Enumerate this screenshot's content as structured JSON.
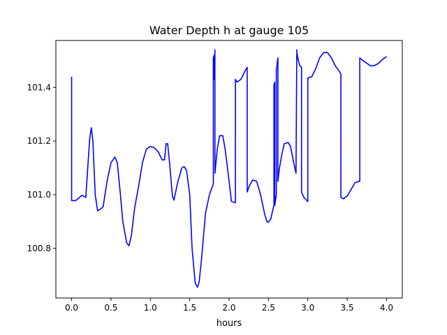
{
  "chart_data": {
    "type": "line",
    "title": "Water Depth h at gauge 105",
    "xlabel": "hours",
    "ylabel": "",
    "xlim": [
      -0.2,
      4.2
    ],
    "ylim": [
      100.615,
      101.575
    ],
    "xticks": [
      0.0,
      0.5,
      1.0,
      1.5,
      2.0,
      2.5,
      3.0,
      3.5,
      4.0
    ],
    "xtick_labels": [
      "0.0",
      "0.5",
      "1.0",
      "1.5",
      "2.0",
      "2.5",
      "3.0",
      "3.5",
      "4.0"
    ],
    "yticks": [
      100.8,
      101.0,
      101.2,
      101.4
    ],
    "ytick_labels": [
      "100.8",
      "101.0",
      "101.2",
      "101.4"
    ],
    "grid": false,
    "line_color": "#0000ff",
    "series": [
      {
        "x": [
          0.0,
          0.0,
          0.05,
          0.1,
          0.13,
          0.18,
          0.2,
          0.23,
          0.25,
          0.27,
          0.3,
          0.33,
          0.36,
          0.4,
          0.45,
          0.5,
          0.55,
          0.58,
          0.62,
          0.65,
          0.7,
          0.73,
          0.76,
          0.8,
          0.85,
          0.9,
          0.95,
          1.0,
          1.05,
          1.1,
          1.15,
          1.18,
          1.2,
          1.22,
          1.25,
          1.28,
          1.3,
          1.35,
          1.4,
          1.43,
          1.46,
          1.5,
          1.53,
          1.57,
          1.6,
          1.62,
          1.65,
          1.7,
          1.75,
          1.8,
          1.8,
          1.81,
          1.81,
          1.82,
          1.82,
          1.85,
          1.88,
          1.92,
          1.95,
          2.0,
          2.03,
          2.08,
          2.08,
          2.1,
          2.15,
          2.2,
          2.23,
          2.23,
          2.26,
          2.3,
          2.35,
          2.4,
          2.45,
          2.48,
          2.5,
          2.53,
          2.56,
          2.57,
          2.57,
          2.58,
          2.58,
          2.6,
          2.6,
          2.61,
          2.61,
          2.62,
          2.62,
          2.64,
          2.67,
          2.7,
          2.75,
          2.78,
          2.82,
          2.85,
          2.86,
          2.86,
          2.88,
          2.9,
          2.92,
          2.92,
          2.95,
          3.0,
          3.0,
          3.05,
          3.1,
          3.15,
          3.2,
          3.25,
          3.3,
          3.35,
          3.4,
          3.42,
          3.42,
          3.45,
          3.5,
          3.55,
          3.6,
          3.65,
          3.66,
          3.66,
          3.7,
          3.75,
          3.8,
          3.85,
          3.9,
          3.95,
          4.0
        ],
        "y": [
          101.44,
          100.978,
          100.978,
          100.99,
          100.998,
          100.99,
          101.08,
          101.21,
          101.25,
          101.2,
          101.0,
          100.94,
          100.945,
          100.955,
          101.05,
          101.12,
          101.14,
          101.12,
          101.0,
          100.9,
          100.82,
          100.81,
          100.85,
          100.95,
          101.03,
          101.12,
          101.17,
          101.18,
          101.175,
          101.16,
          101.13,
          101.13,
          101.19,
          101.19,
          101.1,
          100.995,
          100.98,
          101.05,
          101.1,
          101.105,
          101.09,
          101.0,
          100.8,
          100.67,
          100.655,
          100.675,
          100.76,
          100.93,
          101.0,
          101.04,
          101.51,
          101.52,
          101.43,
          101.54,
          101.08,
          101.17,
          101.22,
          101.22,
          101.17,
          101.05,
          100.975,
          100.97,
          101.43,
          101.42,
          101.43,
          101.46,
          101.475,
          101.01,
          101.035,
          101.055,
          101.05,
          101.0,
          100.93,
          100.9,
          100.898,
          100.91,
          100.95,
          100.96,
          101.41,
          101.42,
          100.96,
          101.0,
          101.47,
          101.48,
          101.49,
          101.51,
          101.05,
          101.1,
          101.15,
          101.19,
          101.195,
          101.18,
          101.12,
          101.08,
          101.54,
          101.53,
          101.5,
          101.48,
          101.475,
          101.01,
          100.99,
          100.975,
          101.435,
          101.44,
          101.47,
          101.51,
          101.53,
          101.53,
          101.51,
          101.48,
          101.46,
          101.45,
          100.99,
          100.985,
          100.995,
          101.02,
          101.045,
          101.05,
          101.05,
          101.51,
          101.5,
          101.49,
          101.48,
          101.482,
          101.49,
          101.505,
          101.515
        ]
      }
    ]
  }
}
